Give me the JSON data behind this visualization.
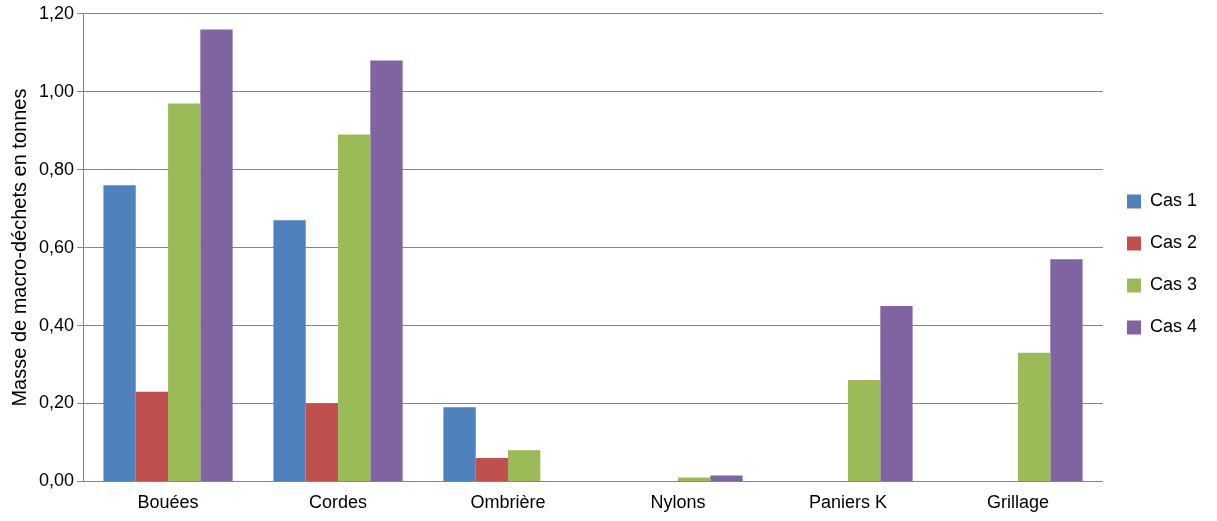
{
  "chart_data": {
    "type": "bar",
    "ylabel": "Masse de macro-déchets en tonnes",
    "categories": [
      "Bouées",
      "Cordes",
      "Ombrière",
      "Nylons",
      "Paniers K",
      "Grillage"
    ],
    "series": [
      {
        "name": "Cas 1",
        "color": "#4f81bd",
        "values": [
          0.76,
          0.67,
          0.19,
          0,
          0,
          0
        ]
      },
      {
        "name": "Cas 2",
        "color": "#c0504d",
        "values": [
          0.23,
          0.2,
          0.06,
          0,
          0,
          0
        ]
      },
      {
        "name": "Cas 3",
        "color": "#9bbb59",
        "values": [
          0.97,
          0.89,
          0.08,
          0.01,
          0.26,
          0.33
        ]
      },
      {
        "name": "Cas 4",
        "color": "#8064a2",
        "values": [
          1.16,
          1.08,
          0,
          0.015,
          0.45,
          0.57
        ]
      }
    ],
    "ylim": [
      0,
      1.2
    ],
    "yticks": [
      {
        "value": 0,
        "label": "0,00"
      },
      {
        "value": 0.2,
        "label": "0,20"
      },
      {
        "value": 0.4,
        "label": "0,40"
      },
      {
        "value": 0.6,
        "label": "0,60"
      },
      {
        "value": 0.8,
        "label": "0,80"
      },
      {
        "value": 1,
        "label": "1,00"
      },
      {
        "value": 1.2,
        "label": "1,20"
      }
    ],
    "grid": "y",
    "legend": "right"
  }
}
